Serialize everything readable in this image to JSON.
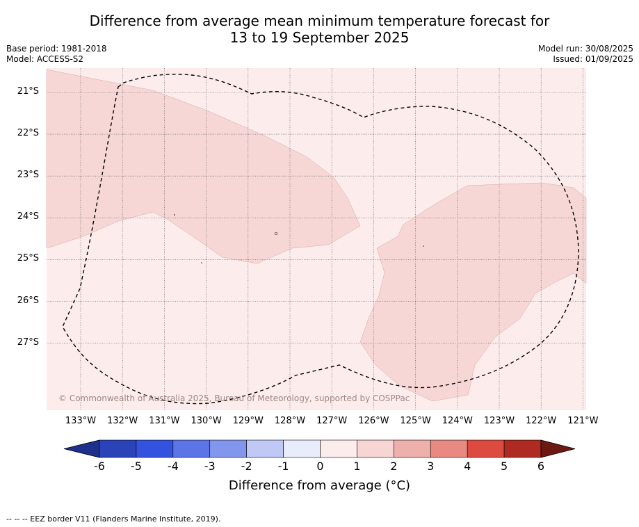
{
  "title_line1": "Difference from average mean minimum temperature forecast for",
  "title_line2": "13 to 19 September 2025",
  "meta_left": {
    "base_period": "Base period: 1981-2018",
    "model": "Model: ACCESS-S2"
  },
  "meta_right": {
    "model_run": "Model run: 30/08/2025",
    "issued": "Issued: 01/09/2025"
  },
  "map": {
    "lon_ticks": [
      "133°W",
      "132°W",
      "131°W",
      "130°W",
      "129°W",
      "128°W",
      "127°W",
      "126°W",
      "125°W",
      "124°W",
      "123°W",
      "122°W",
      "121°W"
    ],
    "lat_ticks": [
      "21°S",
      "22°S",
      "23°S",
      "24°S",
      "25°S",
      "26°S",
      "27°S"
    ],
    "background_category": "0 to 1",
    "anomaly_category": "1 to 2",
    "copyright": "© Commonwealth of Australia 2025, Bureau of Meteorology, supported by COSPPac"
  },
  "colorbar": {
    "ticks": [
      "-6",
      "-5",
      "-4",
      "-3",
      "-2",
      "-1",
      "0",
      "1",
      "2",
      "3",
      "4",
      "5",
      "6"
    ],
    "colors": [
      "#1e2f8c",
      "#2a43b8",
      "#3352e0",
      "#5b74e6",
      "#8396ee",
      "#c0c8f6",
      "#e9ecfb",
      "#fcecec",
      "#f6d5d4",
      "#eeb0ab",
      "#e88a82",
      "#dc4a40",
      "#ad2b22",
      "#6e1812"
    ],
    "label": "Difference from average (°C)"
  },
  "footnote": "--  --  -- EEZ border V11 (Flanders Marine Institute, 2019)."
}
